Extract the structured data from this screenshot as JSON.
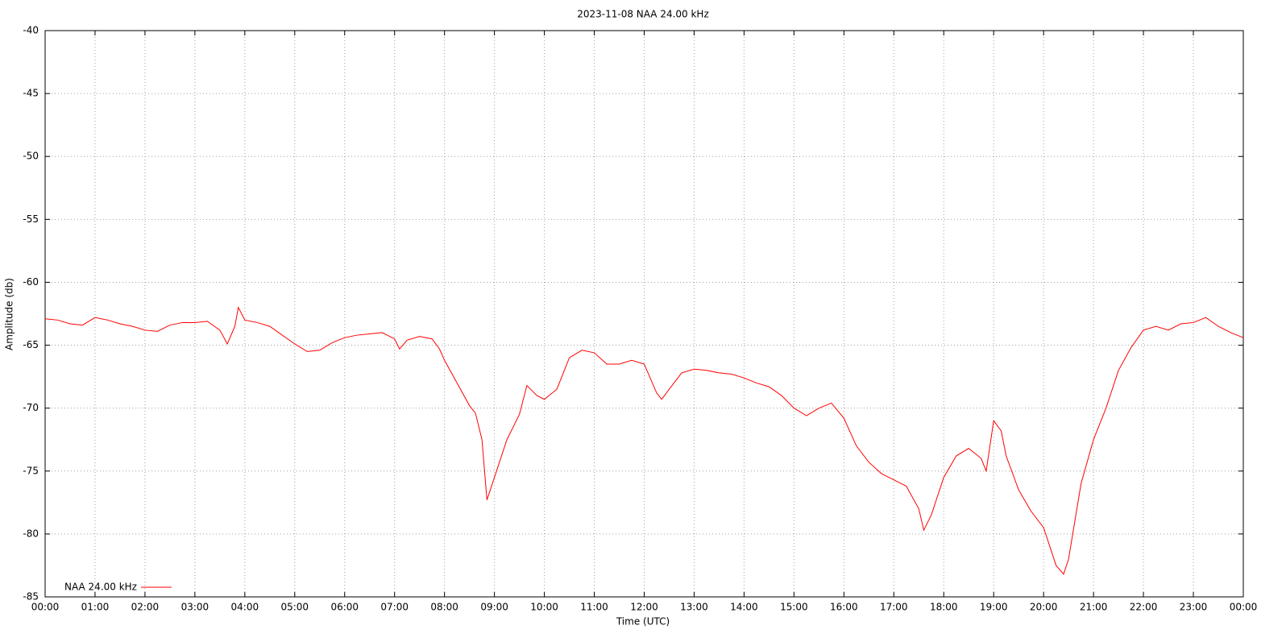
{
  "chart_data": {
    "type": "line",
    "title": "2023-11-08 NAA 24.00 kHz",
    "x_label": "Time (UTC)",
    "y_label": "Amplitude (db)",
    "x": [
      0,
      0.25,
      0.5,
      0.75,
      1,
      1.25,
      1.5,
      1.75,
      2,
      2.25,
      2.5,
      2.75,
      3,
      3.25,
      3.5,
      3.65,
      3.8,
      3.87,
      4,
      4.25,
      4.5,
      4.75,
      5,
      5.25,
      5.5,
      5.75,
      6,
      6.25,
      6.5,
      6.75,
      7,
      7.1,
      7.25,
      7.5,
      7.75,
      7.9,
      8,
      8.25,
      8.5,
      8.62,
      8.75,
      8.85,
      9,
      9.25,
      9.5,
      9.65,
      9.85,
      10,
      10.25,
      10.5,
      10.75,
      11,
      11.25,
      11.5,
      11.75,
      12,
      12.25,
      12.35,
      12.5,
      12.75,
      13,
      13.25,
      13.5,
      13.75,
      14,
      14.25,
      14.5,
      14.75,
      15,
      15.25,
      15.5,
      15.75,
      16,
      16.25,
      16.5,
      16.75,
      17,
      17.25,
      17.5,
      17.6,
      17.75,
      18,
      18.25,
      18.5,
      18.75,
      18.85,
      19,
      19.15,
      19.25,
      19.5,
      19.75,
      20,
      20.25,
      20.4,
      20.5,
      20.75,
      21,
      21.25,
      21.5,
      21.75,
      22,
      22.25,
      22.5,
      22.75,
      23,
      23.25,
      23.5,
      23.75,
      24
    ],
    "series": [
      {
        "name": "NAA 24.00 kHz",
        "color": "#ff0000",
        "values": [
          -62.9,
          -63.0,
          -63.3,
          -63.4,
          -62.8,
          -63.0,
          -63.3,
          -63.5,
          -63.8,
          -63.9,
          -63.4,
          -63.2,
          -63.2,
          -63.1,
          -63.8,
          -64.9,
          -63.5,
          -62.0,
          -63.0,
          -63.2,
          -63.5,
          -64.2,
          -64.9,
          -65.5,
          -65.4,
          -64.8,
          -64.4,
          -64.2,
          -64.1,
          -64.0,
          -64.5,
          -65.3,
          -64.6,
          -64.3,
          -64.5,
          -65.3,
          -66.2,
          -68.0,
          -69.8,
          -70.4,
          -72.5,
          -77.3,
          -75.5,
          -72.5,
          -70.5,
          -68.2,
          -69.0,
          -69.3,
          -68.5,
          -66.0,
          -65.4,
          -65.6,
          -66.5,
          -66.5,
          -66.2,
          -66.5,
          -68.8,
          -69.3,
          -68.5,
          -67.2,
          -66.9,
          -67.0,
          -67.2,
          -67.3,
          -67.6,
          -68.0,
          -68.3,
          -69.0,
          -70.0,
          -70.6,
          -70.0,
          -69.6,
          -70.8,
          -73.0,
          -74.3,
          -75.2,
          -75.7,
          -76.2,
          -78.0,
          -79.7,
          -78.5,
          -75.5,
          -73.8,
          -73.2,
          -74.0,
          -75.0,
          -71.0,
          -71.8,
          -73.8,
          -76.5,
          -78.2,
          -79.5,
          -82.5,
          -83.2,
          -82.0,
          -76.0,
          -72.5,
          -70.0,
          -67.0,
          -65.2,
          -63.8,
          -63.5,
          -63.8,
          -63.3,
          -63.2,
          -62.8,
          -63.5,
          -64.0,
          -64.4
        ]
      }
    ],
    "xlim": [
      0,
      24
    ],
    "xticks": [
      {
        "value": 0,
        "label": "00:00"
      },
      {
        "value": 1,
        "label": "01:00"
      },
      {
        "value": 2,
        "label": "02:00"
      },
      {
        "value": 3,
        "label": "03:00"
      },
      {
        "value": 4,
        "label": "04:00"
      },
      {
        "value": 5,
        "label": "05:00"
      },
      {
        "value": 6,
        "label": "06:00"
      },
      {
        "value": 7,
        "label": "07:00"
      },
      {
        "value": 8,
        "label": "08:00"
      },
      {
        "value": 9,
        "label": "09:00"
      },
      {
        "value": 10,
        "label": "10:00"
      },
      {
        "value": 11,
        "label": "11:00"
      },
      {
        "value": 12,
        "label": "12:00"
      },
      {
        "value": 13,
        "label": "13:00"
      },
      {
        "value": 14,
        "label": "14:00"
      },
      {
        "value": 15,
        "label": "15:00"
      },
      {
        "value": 16,
        "label": "16:00"
      },
      {
        "value": 17,
        "label": "17:00"
      },
      {
        "value": 18,
        "label": "18:00"
      },
      {
        "value": 19,
        "label": "19:00"
      },
      {
        "value": 20,
        "label": "20:00"
      },
      {
        "value": 21,
        "label": "21:00"
      },
      {
        "value": 22,
        "label": "22:00"
      },
      {
        "value": 23,
        "label": "23:00"
      },
      {
        "value": 24,
        "label": "00:00"
      }
    ],
    "ylim": [
      -85,
      -40
    ],
    "yticks": [
      -85,
      -80,
      -75,
      -70,
      -65,
      -60,
      -55,
      -50,
      -45,
      -40
    ],
    "grid": true,
    "legend": "bottom-left"
  }
}
